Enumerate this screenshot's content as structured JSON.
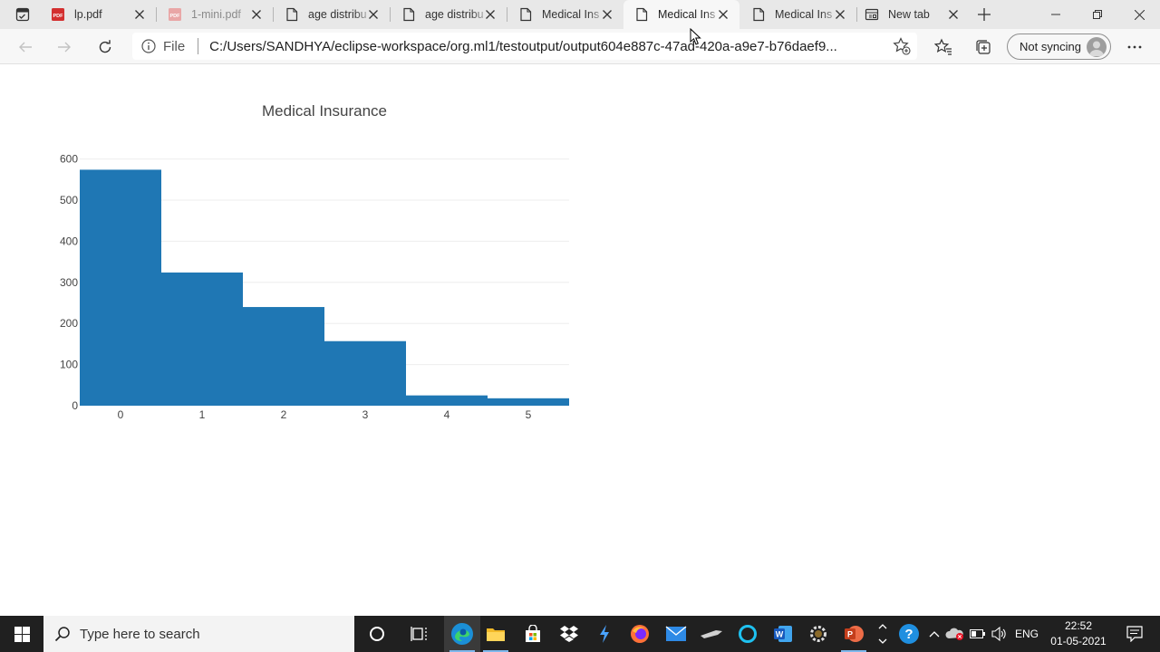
{
  "browser": {
    "tabs": [
      {
        "title": "lp.pdf",
        "icon": "pdf-icon",
        "active": false
      },
      {
        "title": "1-mini.pdf",
        "icon": "pdf-icon",
        "active": false,
        "faded": true
      },
      {
        "title": "age distribu",
        "icon": "page-icon",
        "active": false
      },
      {
        "title": "age distribu",
        "icon": "page-icon",
        "active": false
      },
      {
        "title": "Medical Ins",
        "icon": "page-icon",
        "active": false
      },
      {
        "title": "Medical Ins",
        "icon": "page-icon",
        "active": true
      },
      {
        "title": "Medical Ins",
        "icon": "page-icon",
        "active": false
      },
      {
        "title": "New tab",
        "icon": "newtab-page-icon",
        "active": false
      }
    ],
    "address": {
      "site_info_label": "File",
      "url": "C:/Users/SANDHYA/eclipse-workspace/org.ml1/testoutput/output604e887c-47ad-420a-a9e7-b76daef9..."
    },
    "profile": {
      "label": "Not syncing"
    }
  },
  "chart_data": {
    "type": "bar",
    "title": "Medical Insurance",
    "xlabel": "",
    "ylabel": "",
    "categories": [
      "0",
      "1",
      "2",
      "3",
      "4",
      "5"
    ],
    "values": [
      574,
      324,
      240,
      157,
      25,
      18
    ],
    "ylim": [
      0,
      630
    ],
    "yticks": [
      0,
      100,
      200,
      300,
      400,
      500,
      600
    ],
    "grid": true,
    "bar_color": "#1f77b4",
    "legend": "none"
  },
  "taskbar": {
    "search_placeholder": "Type here to search",
    "language": "ENG",
    "time": "22:52",
    "date": "01-05-2021"
  },
  "colors": {
    "accent": "#1f77b4",
    "taskbar_bg": "#202020",
    "tabstrip_bg": "#e8e8e8"
  }
}
